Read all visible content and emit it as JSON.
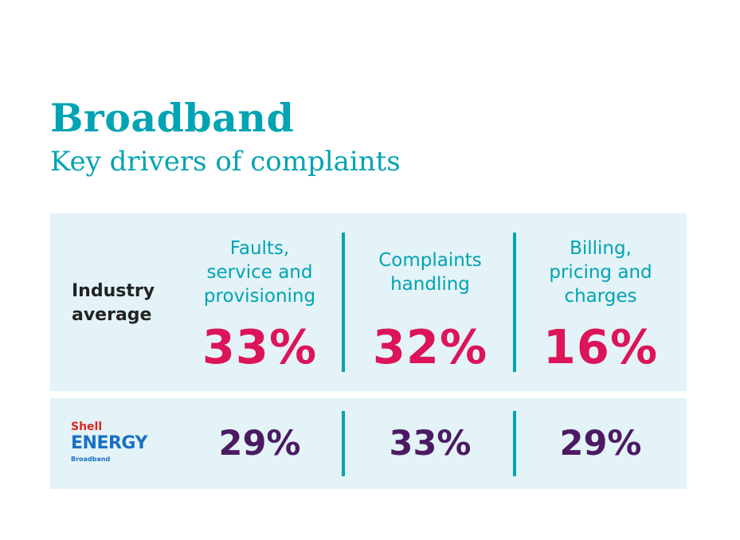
{
  "colors": {
    "teal": "#00a3b4",
    "magenta": "#dc1459",
    "purple": "#4b1a63",
    "panel": "#e3f3f7",
    "logo_red": "#e1231f",
    "logo_blue": "#1a6fc4"
  },
  "chart_data": {
    "type": "table",
    "title": "Broadband",
    "subtitle": "Key drivers of complaints",
    "categories": [
      "Faults,\nservice and\nprovisioning",
      "Complaints\nhandling",
      "Billing,\npricing and\ncharges"
    ],
    "series": [
      {
        "name": "Industry\naverage",
        "values": [
          33,
          32,
          16
        ],
        "labels": [
          "33%",
          "32%",
          "16%"
        ],
        "color": "#dc1459"
      },
      {
        "name": "Shell ENERGY Broadband",
        "values": [
          29,
          33,
          29
        ],
        "labels": [
          "29%",
          "33%",
          "29%"
        ],
        "color": "#4b1a63"
      }
    ]
  },
  "logo": {
    "line1": "Shell",
    "line2": "ENERGY",
    "line3": "Broadband"
  }
}
